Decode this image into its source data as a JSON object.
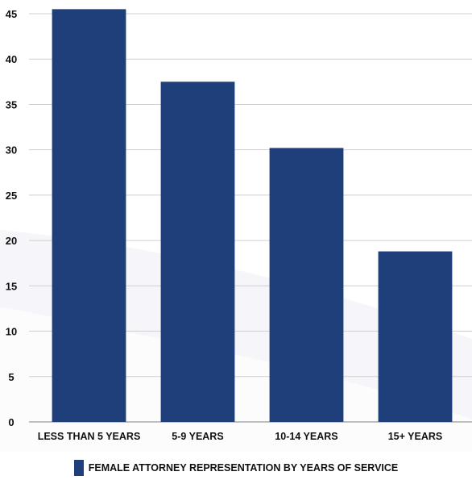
{
  "chart_data": {
    "type": "bar",
    "categories": [
      "LESS THAN 5 YEARS",
      "5-9 YEARS",
      "10-14 YEARS",
      "15+ YEARS"
    ],
    "series": [
      {
        "name": "FEMALE ATTORNEY REPRESENTATION BY YEARS OF SERVICE",
        "values": [
          45.5,
          37.5,
          30.2,
          18.8
        ]
      }
    ],
    "yticks": [
      "0",
      "5",
      "10",
      "15",
      "20",
      "25",
      "30",
      "35",
      "40",
      "45"
    ],
    "ylim": [
      0,
      45
    ],
    "grid": true,
    "legend": "bottom",
    "bar_color": "#1f3f7a",
    "grid_color": "#cfcfcf",
    "background_shape_color": "#eeedf4"
  }
}
